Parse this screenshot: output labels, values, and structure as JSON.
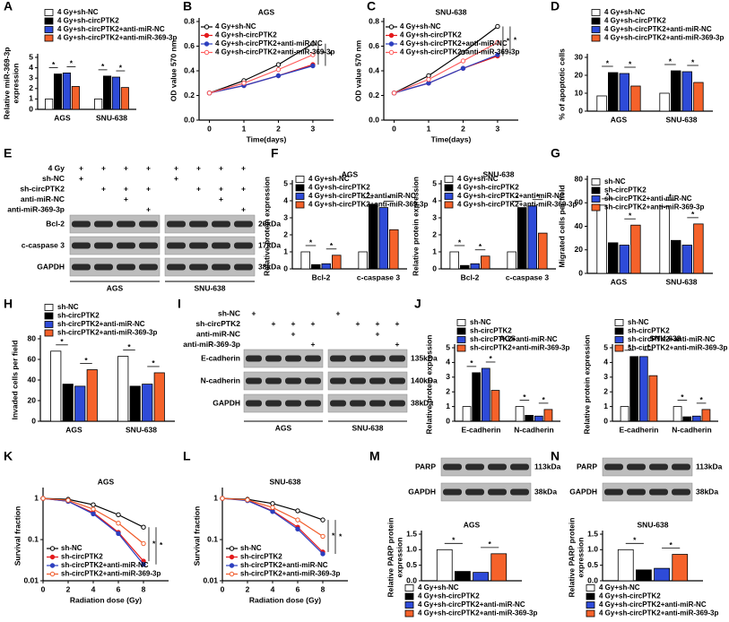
{
  "panel_letters": [
    "A",
    "B",
    "C",
    "D",
    "E",
    "F",
    "G",
    "H",
    "I",
    "J",
    "K",
    "L",
    "M",
    "N"
  ],
  "chart_data": [
    {
      "type": "bar",
      "y_label": [
        "Relative miR-369-3p",
        "expression"
      ],
      "categories": [
        "AGS",
        "SNU-638"
      ],
      "ylim": [
        0,
        5
      ],
      "yticks": [
        0,
        1,
        2,
        3,
        4,
        5
      ],
      "series": [
        {
          "name": "4 Gy+sh-NC",
          "color": "#ffffff",
          "values": [
            1,
            1
          ]
        },
        {
          "name": "4 Gy+sh-circPTK2",
          "color": "#000000",
          "values": [
            3.4,
            3.2
          ]
        },
        {
          "name": "4 Gy+sh-circPTK2+anti-miR-NC",
          "color": "#2e4bd8",
          "values": [
            3.5,
            3.1
          ]
        },
        {
          "name": "4 Gy+sh-circPTK2+anti-miR-369-3p",
          "color": "#f5622a",
          "values": [
            2.2,
            2.1
          ]
        }
      ],
      "annotations": [
        "*",
        "*",
        "*",
        "*"
      ]
    },
    {
      "type": "line",
      "title": "AGS",
      "x_label": "Time(days)",
      "y_label": "OD value 570 nm",
      "x": [
        0,
        1,
        2,
        3
      ],
      "xlim": [
        -0.3,
        3.6
      ],
      "xticks": [
        0,
        1,
        2,
        3
      ],
      "ylim": [
        0,
        0.8
      ],
      "yticks": [
        {
          "value": 0,
          "label": "0.0"
        },
        0.2,
        0.4,
        0.6,
        0.8
      ],
      "series": [
        {
          "name": "4 Gy+sh-NC",
          "color": "#000000",
          "values": [
            0.22,
            0.32,
            0.45,
            0.62
          ]
        },
        {
          "name": "4 Gy+sh-circPTK2",
          "color": "#e41a1c",
          "values": [
            0.22,
            0.28,
            0.36,
            0.45
          ]
        },
        {
          "name": "4 Gy+sh-circPTK2+anti-miR-NC",
          "color": "#2c3fbf",
          "values": [
            0.22,
            0.28,
            0.36,
            0.44
          ]
        },
        {
          "name": "4 Gy+sh-circPTK2+anti-miR-369-3p",
          "color": "#ff5a5a",
          "values": [
            0.22,
            0.3,
            0.41,
            0.53
          ]
        }
      ],
      "annotations": [
        "*",
        "*"
      ]
    },
    {
      "type": "line",
      "title": "SNU-638",
      "x_label": "Time(days)",
      "y_label": "OD value 570 nm",
      "x": [
        0,
        1,
        2,
        3
      ],
      "xlim": [
        -0.3,
        3.6
      ],
      "xticks": [
        0,
        1,
        2,
        3
      ],
      "ylim": [
        0,
        0.8
      ],
      "yticks": [
        {
          "value": 0,
          "label": "0.0"
        },
        0.2,
        0.4,
        0.6,
        0.8
      ],
      "series": [
        {
          "name": "4 Gy+sh-NC",
          "color": "#000000",
          "values": [
            0.22,
            0.36,
            0.55,
            0.76
          ]
        },
        {
          "name": "4 Gy+sh-circPTK2",
          "color": "#e41a1c",
          "values": [
            0.22,
            0.3,
            0.42,
            0.52
          ]
        },
        {
          "name": "4 Gy+sh-circPTK2+anti-miR-NC",
          "color": "#2c3fbf",
          "values": [
            0.22,
            0.3,
            0.42,
            0.53
          ]
        },
        {
          "name": "4 Gy+sh-circPTK2+anti-miR-369-3p",
          "color": "#ff5a5a",
          "values": [
            0.22,
            0.33,
            0.48,
            0.63
          ]
        }
      ],
      "annotations": [
        "*",
        "*"
      ]
    },
    {
      "type": "bar",
      "y_label": "% of apoptotic cells",
      "categories": [
        "AGS",
        "SNU-638"
      ],
      "ylim": [
        0,
        30
      ],
      "yticks": [
        0,
        10,
        20,
        30
      ],
      "series": [
        {
          "name": "4 Gy+sh-NC",
          "color": "#ffffff",
          "values": [
            8.5,
            10
          ]
        },
        {
          "name": "4 Gy+sh-circPTK2",
          "color": "#000000",
          "values": [
            21.5,
            22.5
          ]
        },
        {
          "name": "4 Gy+sh-circPTK2+anti-miR-NC",
          "color": "#2e4bd8",
          "values": [
            21,
            22
          ]
        },
        {
          "name": "4 Gy+sh-circPTK2+anti-miR-369-3p",
          "color": "#f5622a",
          "values": [
            14,
            16
          ]
        }
      ],
      "annotations": [
        "*",
        "*",
        "*",
        "*"
      ]
    },
    {
      "type": "bar",
      "title": "AGS",
      "y_label": "Relative protein expression",
      "categories": [
        "Bcl-2",
        "c-caspase 3"
      ],
      "ylim": [
        0,
        5
      ],
      "yticks": [
        0,
        1,
        2,
        3,
        4,
        5
      ],
      "series": [
        {
          "name": "4 Gy+sh-NC",
          "color": "#ffffff",
          "values": [
            1,
            1
          ]
        },
        {
          "name": "4 Gy+sh-circPTK2",
          "color": "#000000",
          "values": [
            0.25,
            3.8
          ]
        },
        {
          "name": "4 Gy+sh-circPTK2+anti-miR-NC",
          "color": "#2e4bd8",
          "values": [
            0.3,
            3.6
          ]
        },
        {
          "name": "4 Gy+sh-circPTK2+anti-miR-369-3p",
          "color": "#f5622a",
          "values": [
            0.8,
            2.3
          ]
        }
      ],
      "annotations": [
        "*",
        "*",
        "*",
        "*"
      ]
    },
    {
      "type": "bar",
      "title": "SNU-638",
      "y_label": "Relative protein expression",
      "categories": [
        "Bcl-2",
        "c-caspase 3"
      ],
      "ylim": [
        0,
        5
      ],
      "yticks": [
        0,
        1,
        2,
        3,
        4,
        5
      ],
      "series": [
        {
          "name": "4 Gy+sh-NC",
          "color": "#ffffff",
          "values": [
            1,
            1
          ]
        },
        {
          "name": "4 Gy+sh-circPTK2",
          "color": "#000000",
          "values": [
            0.2,
            3.6
          ]
        },
        {
          "name": "4 Gy+sh-circPTK2+anti-miR-NC",
          "color": "#2e4bd8",
          "values": [
            0.3,
            3.7
          ]
        },
        {
          "name": "4 Gy+sh-circPTK2+anti-miR-369-3p",
          "color": "#f5622a",
          "values": [
            0.75,
            2.1
          ]
        }
      ],
      "annotations": [
        "*",
        "*",
        "*",
        "*"
      ]
    },
    {
      "type": "bar",
      "y_label": "Migrated cells per field",
      "categories": [
        "AGS",
        "SNU-638"
      ],
      "ylim": [
        0,
        80
      ],
      "yticks": [
        0,
        20,
        40,
        60,
        80
      ],
      "series": [
        {
          "name": "sh-NC",
          "color": "#ffffff",
          "values": [
            58,
            57
          ]
        },
        {
          "name": "sh-circPTK2",
          "color": "#000000",
          "values": [
            26,
            28
          ]
        },
        {
          "name": "sh-circPTK2+anti-miR-NC",
          "color": "#2e4bd8",
          "values": [
            24,
            24
          ]
        },
        {
          "name": "sh-circPTK2+anti-miR-369-3p",
          "color": "#f5622a",
          "values": [
            41,
            42
          ]
        }
      ],
      "annotations": [
        "*",
        "*",
        "*",
        "*"
      ]
    },
    {
      "type": "bar",
      "y_label": "Invaded cells per field",
      "categories": [
        "AGS",
        "SNU-638"
      ],
      "ylim": [
        0,
        80
      ],
      "yticks": [
        0,
        20,
        40,
        60,
        80
      ],
      "series": [
        {
          "name": "sh-NC",
          "color": "#ffffff",
          "values": [
            68,
            63
          ]
        },
        {
          "name": "sh-circPTK2",
          "color": "#000000",
          "values": [
            36,
            34
          ]
        },
        {
          "name": "sh-circPTK2+anti-miR-NC",
          "color": "#2e4bd8",
          "values": [
            34,
            36
          ]
        },
        {
          "name": "sh-circPTK2+anti-miR-369-3p",
          "color": "#f5622a",
          "values": [
            50,
            47
          ]
        }
      ],
      "annotations": [
        "*",
        "*",
        "*",
        "*"
      ]
    },
    {
      "type": "bar",
      "title": "AGS",
      "y_label": "Relative protein expression",
      "categories": [
        "E-cadherin",
        "N-cadherin"
      ],
      "ylim": [
        0,
        5
      ],
      "yticks": [
        0,
        1,
        2,
        3,
        4,
        5
      ],
      "series": [
        {
          "name": "sh-NC",
          "color": "#ffffff",
          "values": [
            1,
            1
          ]
        },
        {
          "name": "sh-circPTK2",
          "color": "#000000",
          "values": [
            3.3,
            0.4
          ]
        },
        {
          "name": "sh-circPTK2+anti-miR-NC",
          "color": "#2e4bd8",
          "values": [
            3.6,
            0.35
          ]
        },
        {
          "name": "sh-circPTK2+anti-miR-369-3p",
          "color": "#f5622a",
          "values": [
            2.1,
            0.8
          ]
        }
      ],
      "annotations": [
        "*",
        "*",
        "*",
        "*"
      ]
    },
    {
      "type": "bar",
      "title": "SNU-638",
      "y_label": "Relative protein expression",
      "categories": [
        "E-cadherin",
        "N-cadherin"
      ],
      "ylim": [
        0,
        5
      ],
      "yticks": [
        0,
        1,
        2,
        3,
        4,
        5
      ],
      "series": [
        {
          "name": "sh-NC",
          "color": "#ffffff",
          "values": [
            1,
            1
          ]
        },
        {
          "name": "sh-circPTK2",
          "color": "#000000",
          "values": [
            4.4,
            0.3
          ]
        },
        {
          "name": "sh-circPTK2+anti-miR-NC",
          "color": "#2e4bd8",
          "values": [
            4.4,
            0.35
          ]
        },
        {
          "name": "sh-circPTK2+anti-miR-369-3p",
          "color": "#f5622a",
          "values": [
            3.1,
            0.8
          ]
        }
      ],
      "annotations": [
        "*",
        "*",
        "*",
        "*"
      ]
    },
    {
      "type": "line",
      "log_y": true,
      "title": "AGS",
      "x_label": "Radiation dose (Gy)",
      "y_label": "Survival fraction",
      "x": [
        0,
        2,
        4,
        6,
        8
      ],
      "xlim": [
        0,
        10
      ],
      "xticks": [
        0,
        2,
        4,
        6,
        8
      ],
      "ylim": [
        0.01,
        1.5
      ],
      "yticks": [
        0.01,
        0.1,
        1
      ],
      "series": [
        {
          "name": "sh-NC",
          "color": "#000000",
          "values": [
            1,
            0.95,
            0.7,
            0.4,
            0.2
          ]
        },
        {
          "name": "sh-circPTK2",
          "color": "#e41a1c",
          "values": [
            1,
            0.85,
            0.45,
            0.15,
            0.03
          ]
        },
        {
          "name": "sh-circPTK2+anti-miR-NC",
          "color": "#2c3fbf",
          "values": [
            1,
            0.85,
            0.42,
            0.14,
            0.025
          ]
        },
        {
          "name": "sh-circPTK2+anti-miR-369-3p",
          "color": "#f05a28",
          "values": [
            1,
            0.9,
            0.55,
            0.25,
            0.08
          ]
        }
      ],
      "annotations": [
        "*",
        "*"
      ]
    },
    {
      "type": "line",
      "log_y": true,
      "title": "SNU-638",
      "x_label": "Radiation dose (Gy)",
      "y_label": "Survival fraction",
      "x": [
        0,
        2,
        4,
        6,
        8
      ],
      "xlim": [
        0,
        10
      ],
      "xticks": [
        0,
        2,
        4,
        6,
        8
      ],
      "ylim": [
        0.01,
        1.5
      ],
      "yticks": [
        0.01,
        0.1,
        1
      ],
      "series": [
        {
          "name": "sh-NC",
          "color": "#000000",
          "values": [
            1,
            0.95,
            0.75,
            0.5,
            0.3
          ]
        },
        {
          "name": "sh-circPTK2",
          "color": "#e41a1c",
          "values": [
            1,
            0.9,
            0.5,
            0.2,
            0.05
          ]
        },
        {
          "name": "sh-circPTK2+anti-miR-NC",
          "color": "#2c3fbf",
          "values": [
            1,
            0.88,
            0.48,
            0.18,
            0.045
          ]
        },
        {
          "name": "sh-circPTK2+anti-miR-369-3p",
          "color": "#f05a28",
          "values": [
            1,
            0.92,
            0.6,
            0.3,
            0.12
          ]
        }
      ],
      "annotations": [
        "*",
        "*"
      ]
    },
    {
      "type": "bar",
      "title": "AGS",
      "y_label": [
        "Relative PARP protein",
        "expression"
      ],
      "categories": [
        null
      ],
      "ylim": [
        0,
        1.5
      ],
      "yticks": [
        {
          "value": 0,
          "label": "0.0"
        },
        0.5,
        {
          "value": 1,
          "label": "1.0"
        },
        1.5
      ],
      "series": [
        {
          "name": "4 Gy+sh-NC",
          "color": "#ffffff",
          "values": [
            1
          ]
        },
        {
          "name": "4 Gy+sh-circPTK2",
          "color": "#000000",
          "values": [
            0.3
          ]
        },
        {
          "name": "4 Gy+sh-circPTK2+anti-miR-NC",
          "color": "#2e4bd8",
          "values": [
            0.27
          ]
        },
        {
          "name": "4 Gy+sh-circPTK2+anti-miR-369-3p",
          "color": "#f5622a",
          "values": [
            0.87
          ]
        }
      ],
      "annotations": [
        "*",
        "*"
      ]
    },
    {
      "type": "bar",
      "title": "SNU-638",
      "y_label": [
        "Relative PARP protein",
        "expression"
      ],
      "categories": [
        null
      ],
      "ylim": [
        0,
        1.5
      ],
      "yticks": [
        {
          "value": 0,
          "label": "0.0"
        },
        0.5,
        {
          "value": 1,
          "label": "1.0"
        },
        1.5
      ],
      "series": [
        {
          "name": "4 Gy+sh-NC",
          "color": "#ffffff",
          "values": [
            1
          ]
        },
        {
          "name": "4 Gy+sh-circPTK2",
          "color": "#000000",
          "values": [
            0.35
          ]
        },
        {
          "name": "4 Gy+sh-circPTK2+anti-miR-NC",
          "color": "#2e4bd8",
          "values": [
            0.4
          ]
        },
        {
          "name": "4 Gy+sh-circPTK2+anti-miR-369-3p",
          "color": "#f5622a",
          "values": [
            0.85
          ]
        }
      ],
      "annotations": [
        "*",
        "*"
      ]
    }
  ],
  "blots": [
    {
      "conditions": [
        {
          "label": "4 Gy",
          "marks": [
            "+",
            "+",
            "+",
            "+",
            "+",
            "+",
            "+",
            "+"
          ]
        },
        {
          "label": "sh-NC",
          "marks": [
            "+",
            null,
            null,
            null,
            "+",
            null,
            null,
            null
          ]
        },
        {
          "label": "sh-circPTK2",
          "marks": [
            null,
            "+",
            "+",
            "+",
            null,
            "+",
            "+",
            "+"
          ]
        },
        {
          "label": "anti-miR-NC",
          "marks": [
            null,
            null,
            "+",
            null,
            null,
            null,
            "+",
            null
          ]
        },
        {
          "label": "anti-miR-369-3p",
          "marks": [
            null,
            null,
            null,
            "+",
            null,
            null,
            null,
            "+"
          ]
        }
      ],
      "bands": [
        {
          "protein": "Bcl-2",
          "size": "26kDa"
        },
        {
          "protein": "c-caspase 3",
          "size": "17kDa"
        },
        {
          "protein": "GAPDH",
          "size": "38kDa"
        }
      ],
      "groups": [
        "AGS",
        "SNU-638"
      ]
    },
    {
      "conditions": [
        {
          "label": "sh-NC",
          "marks": [
            "+",
            null,
            null,
            null,
            "+",
            null,
            null,
            null
          ]
        },
        {
          "label": "sh-circPTK2",
          "marks": [
            null,
            "+",
            "+",
            "+",
            null,
            "+",
            "+",
            "+"
          ]
        },
        {
          "label": "anti-miR-NC",
          "marks": [
            null,
            null,
            "+",
            null,
            null,
            null,
            "+",
            null
          ]
        },
        {
          "label": "anti-miR-369-3p",
          "marks": [
            null,
            null,
            null,
            "+",
            null,
            null,
            null,
            "+"
          ]
        }
      ],
      "bands": [
        {
          "protein": "E-cadherin",
          "size": "135kDa"
        },
        {
          "protein": "N-cadherin",
          "size": "140kDa"
        },
        {
          "protein": "GAPDH",
          "size": "38kDa"
        }
      ],
      "groups": [
        "AGS",
        "SNU-638"
      ]
    },
    {
      "bands": [
        {
          "protein": "PARP",
          "size": "113kDa"
        },
        {
          "protein": "GAPDH",
          "size": "38kDa"
        }
      ]
    },
    {
      "bands": [
        {
          "protein": "PARP",
          "size": "113kDa"
        },
        {
          "protein": "GAPDH",
          "size": "38kDa"
        }
      ]
    }
  ]
}
